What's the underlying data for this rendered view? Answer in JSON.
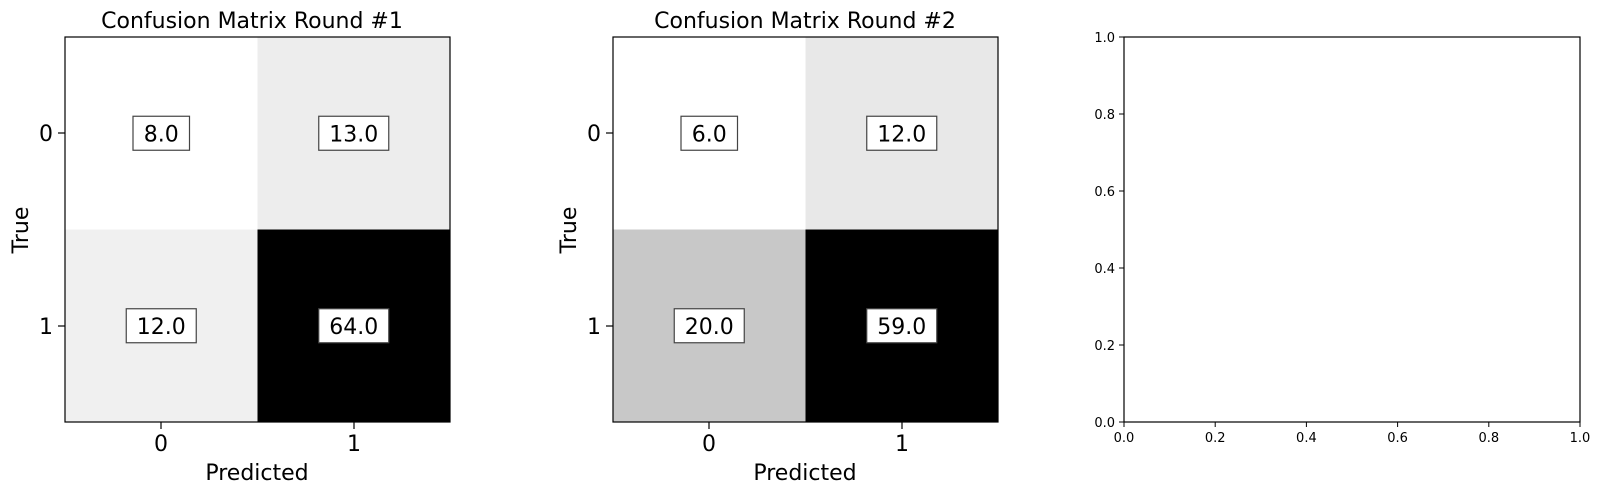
{
  "chart_data": [
    {
      "type": "heatmap",
      "title": "Confusion Matrix Round #1",
      "xlabel": "Predicted",
      "ylabel": "True",
      "x_categories": [
        "0",
        "1"
      ],
      "y_categories": [
        "0",
        "1"
      ],
      "values": [
        [
          8.0,
          13.0
        ],
        [
          12.0,
          64.0
        ]
      ],
      "value_labels": [
        [
          "8.0",
          "13.0"
        ],
        [
          "12.0",
          "64.0"
        ]
      ],
      "colormap": "Greys",
      "grid": false
    },
    {
      "type": "heatmap",
      "title": "Confusion Matrix Round #2",
      "xlabel": "Predicted",
      "ylabel": "True",
      "x_categories": [
        "0",
        "1"
      ],
      "y_categories": [
        "0",
        "1"
      ],
      "values": [
        [
          6.0,
          12.0
        ],
        [
          20.0,
          59.0
        ]
      ],
      "value_labels": [
        [
          "6.0",
          "12.0"
        ],
        [
          "20.0",
          "59.0"
        ]
      ],
      "colormap": "Greys",
      "grid": false
    },
    {
      "type": "line",
      "title": "",
      "xlabel": "",
      "ylabel": "",
      "xlim": [
        0.0,
        1.0
      ],
      "ylim": [
        0.0,
        1.0
      ],
      "x_ticks": [
        "0.0",
        "0.2",
        "0.4",
        "0.6",
        "0.8",
        "1.0"
      ],
      "y_ticks": [
        "0.0",
        "0.2",
        "0.4",
        "0.6",
        "0.8",
        "1.0"
      ],
      "series": [],
      "grid": false
    }
  ]
}
